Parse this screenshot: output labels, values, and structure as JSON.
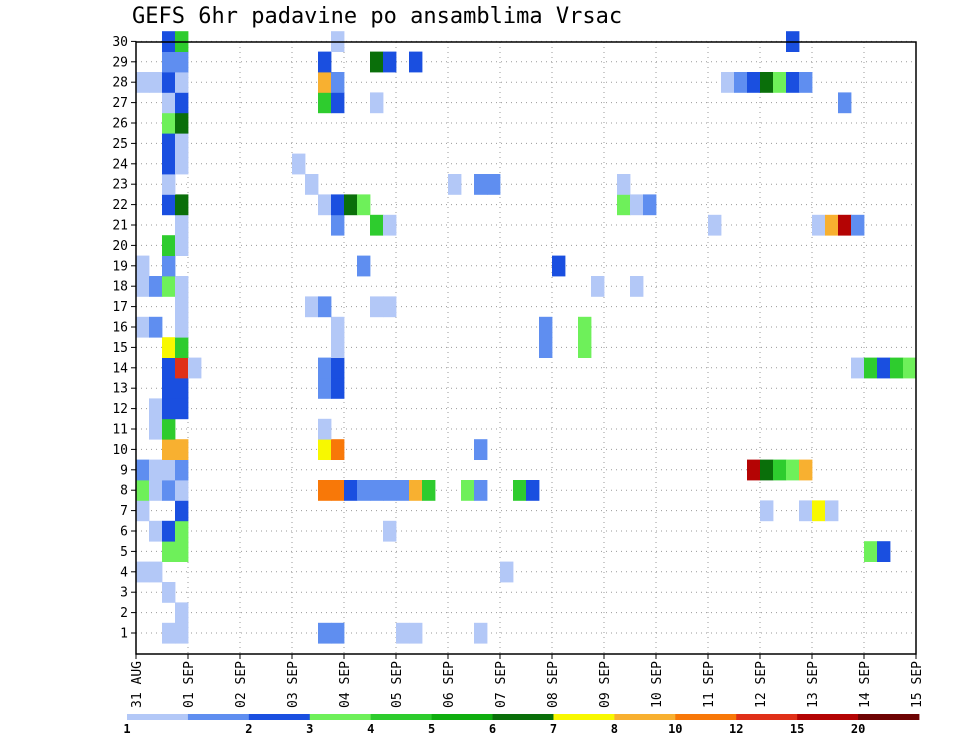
{
  "title": "GEFS 6hr padavine po ansamblima Vrsac",
  "chart_data": {
    "type": "heatmap",
    "title": "GEFS 6hr padavine po ansamblima Vrsac",
    "y_members": [
      1,
      2,
      3,
      4,
      5,
      6,
      7,
      8,
      9,
      10,
      11,
      12,
      13,
      14,
      15,
      16,
      17,
      18,
      19,
      20,
      21,
      22,
      23,
      24,
      25,
      26,
      27,
      28,
      29,
      30
    ],
    "ylim": [
      1,
      30
    ],
    "x_labels": [
      "31 AUG",
      "01 SEP",
      "02 SEP",
      "03 SEP",
      "04 SEP",
      "05 SEP",
      "06 SEP",
      "07 SEP",
      "08 SEP",
      "09 SEP",
      "10 SEP",
      "11 SEP",
      "12 SEP",
      "13 SEP",
      "14 SEP",
      "15 SEP"
    ],
    "xlim": [
      "31 AUG",
      "15 SEP"
    ],
    "x_step": "6hr",
    "grid": true,
    "colorbar": {
      "labels": [
        "1",
        "2",
        "3",
        "4",
        "5",
        "6",
        "7",
        "8",
        "10",
        "12",
        "15",
        "20"
      ],
      "colors": [
        "#b3c8f7",
        "#5f8ef0",
        "#1a4fe0",
        "#6ef05a",
        "#2ecc2e",
        "#0fae0f",
        "#0a6f0a",
        "#f8f800",
        "#f8b030",
        "#f87808",
        "#e03018",
        "#b40404",
        "#6e0404"
      ]
    },
    "cells": [
      {
        "m": 1,
        "s": 2,
        "c": 1
      },
      {
        "m": 1,
        "s": 3,
        "c": 1
      },
      {
        "m": 1,
        "s": 14,
        "c": 2
      },
      {
        "m": 1,
        "s": 15,
        "c": 2
      },
      {
        "m": 1,
        "s": 20,
        "c": 1
      },
      {
        "m": 1,
        "s": 21,
        "c": 1
      },
      {
        "m": 1,
        "s": 26,
        "c": 1
      },
      {
        "m": 2,
        "s": 3,
        "c": 1
      },
      {
        "m": 3,
        "s": 2,
        "c": 1
      },
      {
        "m": 4,
        "s": 0,
        "c": 1
      },
      {
        "m": 4,
        "s": 1,
        "c": 1
      },
      {
        "m": 4,
        "s": 28,
        "c": 1
      },
      {
        "m": 5,
        "s": 2,
        "c": 4
      },
      {
        "m": 5,
        "s": 3,
        "c": 4
      },
      {
        "m": 5,
        "s": 56,
        "c": 4
      },
      {
        "m": 5,
        "s": 57,
        "c": 3
      },
      {
        "m": 6,
        "s": 1,
        "c": 1
      },
      {
        "m": 6,
        "s": 2,
        "c": 3
      },
      {
        "m": 6,
        "s": 3,
        "c": 4
      },
      {
        "m": 6,
        "s": 19,
        "c": 1
      },
      {
        "m": 7,
        "s": 0,
        "c": 1
      },
      {
        "m": 7,
        "s": 3,
        "c": 3
      },
      {
        "m": 7,
        "s": 48,
        "c": 1
      },
      {
        "m": 7,
        "s": 51,
        "c": 1
      },
      {
        "m": 7,
        "s": 52,
        "c": 8
      },
      {
        "m": 7,
        "s": 53,
        "c": 1
      },
      {
        "m": 8,
        "s": 0,
        "c": 4
      },
      {
        "m": 8,
        "s": 1,
        "c": 1
      },
      {
        "m": 8,
        "s": 2,
        "c": 2
      },
      {
        "m": 8,
        "s": 3,
        "c": 1
      },
      {
        "m": 8,
        "s": 14,
        "c": 10
      },
      {
        "m": 8,
        "s": 15,
        "c": 10
      },
      {
        "m": 8,
        "s": 16,
        "c": 3
      },
      {
        "m": 8,
        "s": 17,
        "c": 2
      },
      {
        "m": 8,
        "s": 18,
        "c": 2
      },
      {
        "m": 8,
        "s": 19,
        "c": 2
      },
      {
        "m": 8,
        "s": 20,
        "c": 2
      },
      {
        "m": 8,
        "s": 21,
        "c": 9
      },
      {
        "m": 8,
        "s": 22,
        "c": 5
      },
      {
        "m": 8,
        "s": 25,
        "c": 4
      },
      {
        "m": 8,
        "s": 26,
        "c": 2
      },
      {
        "m": 8,
        "s": 29,
        "c": 5
      },
      {
        "m": 8,
        "s": 30,
        "c": 3
      },
      {
        "m": 9,
        "s": 0,
        "c": 2
      },
      {
        "m": 9,
        "s": 1,
        "c": 1
      },
      {
        "m": 9,
        "s": 2,
        "c": 1
      },
      {
        "m": 9,
        "s": 3,
        "c": 2
      },
      {
        "m": 9,
        "s": 47,
        "c": 12
      },
      {
        "m": 9,
        "s": 48,
        "c": 7
      },
      {
        "m": 9,
        "s": 49,
        "c": 5
      },
      {
        "m": 9,
        "s": 50,
        "c": 4
      },
      {
        "m": 9,
        "s": 51,
        "c": 9
      },
      {
        "m": 10,
        "s": 2,
        "c": 9
      },
      {
        "m": 10,
        "s": 3,
        "c": 9
      },
      {
        "m": 10,
        "s": 14,
        "c": 8
      },
      {
        "m": 10,
        "s": 15,
        "c": 10
      },
      {
        "m": 10,
        "s": 26,
        "c": 2
      },
      {
        "m": 11,
        "s": 1,
        "c": 1
      },
      {
        "m": 11,
        "s": 2,
        "c": 5
      },
      {
        "m": 11,
        "s": 14,
        "c": 1
      },
      {
        "m": 12,
        "s": 1,
        "c": 1
      },
      {
        "m": 12,
        "s": 2,
        "c": 3
      },
      {
        "m": 12,
        "s": 3,
        "c": 3
      },
      {
        "m": 13,
        "s": 2,
        "c": 3
      },
      {
        "m": 13,
        "s": 3,
        "c": 3
      },
      {
        "m": 13,
        "s": 14,
        "c": 2
      },
      {
        "m": 13,
        "s": 15,
        "c": 3
      },
      {
        "m": 14,
        "s": 2,
        "c": 3
      },
      {
        "m": 14,
        "s": 3,
        "c": 11
      },
      {
        "m": 14,
        "s": 4,
        "c": 1
      },
      {
        "m": 14,
        "s": 14,
        "c": 2
      },
      {
        "m": 14,
        "s": 15,
        "c": 3
      },
      {
        "m": 14,
        "s": 55,
        "c": 1
      },
      {
        "m": 14,
        "s": 56,
        "c": 5
      },
      {
        "m": 14,
        "s": 57,
        "c": 3
      },
      {
        "m": 14,
        "s": 58,
        "c": 5
      },
      {
        "m": 14,
        "s": 59,
        "c": 4
      },
      {
        "m": 15,
        "s": 2,
        "c": 8
      },
      {
        "m": 15,
        "s": 3,
        "c": 5
      },
      {
        "m": 15,
        "s": 15,
        "c": 1
      },
      {
        "m": 15,
        "s": 31,
        "c": 2
      },
      {
        "m": 15,
        "s": 34,
        "c": 4
      },
      {
        "m": 16,
        "s": 0,
        "c": 1
      },
      {
        "m": 16,
        "s": 1,
        "c": 2
      },
      {
        "m": 16,
        "s": 3,
        "c": 1
      },
      {
        "m": 16,
        "s": 15,
        "c": 1
      },
      {
        "m": 16,
        "s": 31,
        "c": 2
      },
      {
        "m": 16,
        "s": 34,
        "c": 4
      },
      {
        "m": 17,
        "s": 3,
        "c": 1
      },
      {
        "m": 17,
        "s": 13,
        "c": 1
      },
      {
        "m": 17,
        "s": 14,
        "c": 2
      },
      {
        "m": 17,
        "s": 18,
        "c": 1
      },
      {
        "m": 17,
        "s": 19,
        "c": 1
      },
      {
        "m": 18,
        "s": 0,
        "c": 1
      },
      {
        "m": 18,
        "s": 1,
        "c": 2
      },
      {
        "m": 18,
        "s": 2,
        "c": 4
      },
      {
        "m": 18,
        "s": 3,
        "c": 1
      },
      {
        "m": 18,
        "s": 35,
        "c": 1
      },
      {
        "m": 18,
        "s": 38,
        "c": 1
      },
      {
        "m": 19,
        "s": 0,
        "c": 1
      },
      {
        "m": 19,
        "s": 2,
        "c": 2
      },
      {
        "m": 19,
        "s": 17,
        "c": 2
      },
      {
        "m": 19,
        "s": 32,
        "c": 3
      },
      {
        "m": 20,
        "s": 2,
        "c": 5
      },
      {
        "m": 20,
        "s": 3,
        "c": 1
      },
      {
        "m": 21,
        "s": 3,
        "c": 1
      },
      {
        "m": 21,
        "s": 15,
        "c": 2
      },
      {
        "m": 21,
        "s": 18,
        "c": 5
      },
      {
        "m": 21,
        "s": 19,
        "c": 1
      },
      {
        "m": 21,
        "s": 44,
        "c": 1
      },
      {
        "m": 21,
        "s": 52,
        "c": 1
      },
      {
        "m": 21,
        "s": 53,
        "c": 9
      },
      {
        "m": 21,
        "s": 54,
        "c": 12
      },
      {
        "m": 21,
        "s": 55,
        "c": 2
      },
      {
        "m": 22,
        "s": 2,
        "c": 3
      },
      {
        "m": 22,
        "s": 3,
        "c": 7
      },
      {
        "m": 22,
        "s": 14,
        "c": 1
      },
      {
        "m": 22,
        "s": 15,
        "c": 3
      },
      {
        "m": 22,
        "s": 16,
        "c": 7
      },
      {
        "m": 22,
        "s": 17,
        "c": 4
      },
      {
        "m": 22,
        "s": 37,
        "c": 4
      },
      {
        "m": 22,
        "s": 38,
        "c": 1
      },
      {
        "m": 22,
        "s": 39,
        "c": 2
      },
      {
        "m": 23,
        "s": 2,
        "c": 1
      },
      {
        "m": 23,
        "s": 13,
        "c": 1
      },
      {
        "m": 23,
        "s": 24,
        "c": 1
      },
      {
        "m": 23,
        "s": 26,
        "c": 2
      },
      {
        "m": 23,
        "s": 27,
        "c": 2
      },
      {
        "m": 23,
        "s": 37,
        "c": 1
      },
      {
        "m": 24,
        "s": 2,
        "c": 3
      },
      {
        "m": 24,
        "s": 3,
        "c": 1
      },
      {
        "m": 24,
        "s": 12,
        "c": 1
      },
      {
        "m": 25,
        "s": 2,
        "c": 3
      },
      {
        "m": 25,
        "s": 3,
        "c": 1
      },
      {
        "m": 26,
        "s": 2,
        "c": 4
      },
      {
        "m": 26,
        "s": 3,
        "c": 7
      },
      {
        "m": 27,
        "s": 2,
        "c": 1
      },
      {
        "m": 27,
        "s": 3,
        "c": 3
      },
      {
        "m": 27,
        "s": 14,
        "c": 5
      },
      {
        "m": 27,
        "s": 15,
        "c": 3
      },
      {
        "m": 27,
        "s": 18,
        "c": 1
      },
      {
        "m": 27,
        "s": 54,
        "c": 2
      },
      {
        "m": 28,
        "s": 0,
        "c": 1
      },
      {
        "m": 28,
        "s": 1,
        "c": 1
      },
      {
        "m": 28,
        "s": 2,
        "c": 3
      },
      {
        "m": 28,
        "s": 3,
        "c": 1
      },
      {
        "m": 28,
        "s": 14,
        "c": 9
      },
      {
        "m": 28,
        "s": 15,
        "c": 2
      },
      {
        "m": 28,
        "s": 45,
        "c": 1
      },
      {
        "m": 28,
        "s": 46,
        "c": 2
      },
      {
        "m": 28,
        "s": 47,
        "c": 3
      },
      {
        "m": 28,
        "s": 48,
        "c": 7
      },
      {
        "m": 28,
        "s": 49,
        "c": 4
      },
      {
        "m": 28,
        "s": 50,
        "c": 3
      },
      {
        "m": 28,
        "s": 51,
        "c": 2
      },
      {
        "m": 29,
        "s": 2,
        "c": 2
      },
      {
        "m": 29,
        "s": 3,
        "c": 2
      },
      {
        "m": 29,
        "s": 14,
        "c": 3
      },
      {
        "m": 29,
        "s": 18,
        "c": 7
      },
      {
        "m": 29,
        "s": 19,
        "c": 3
      },
      {
        "m": 29,
        "s": 21,
        "c": 3
      },
      {
        "m": 30,
        "s": 2,
        "c": 3
      },
      {
        "m": 30,
        "s": 3,
        "c": 5
      },
      {
        "m": 30,
        "s": 15,
        "c": 1
      },
      {
        "m": 30,
        "s": 50,
        "c": 3
      }
    ]
  }
}
